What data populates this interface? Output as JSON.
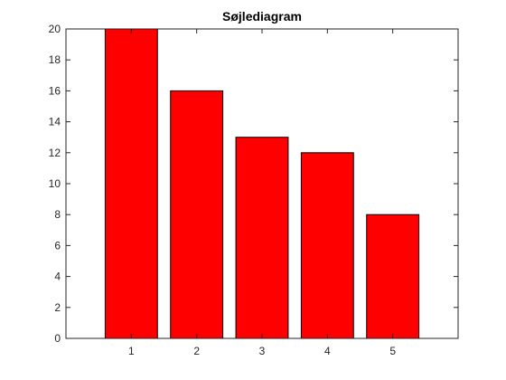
{
  "chart_data": {
    "type": "bar",
    "title": "Søjlediagram",
    "categories": [
      "1",
      "2",
      "3",
      "4",
      "5"
    ],
    "x": [
      1,
      2,
      3,
      4,
      5
    ],
    "values": [
      20,
      16,
      13,
      12,
      8
    ],
    "xlim": [
      0,
      6
    ],
    "ylim": [
      0,
      20
    ],
    "yticks": [
      0,
      2,
      4,
      6,
      8,
      10,
      12,
      14,
      16,
      18,
      20
    ],
    "grid": false,
    "legend": "none",
    "colors": {
      "bar_fill": "#ff0000",
      "bar_edge": "#000000",
      "axes": "#262626",
      "background": "#ffffff"
    }
  }
}
